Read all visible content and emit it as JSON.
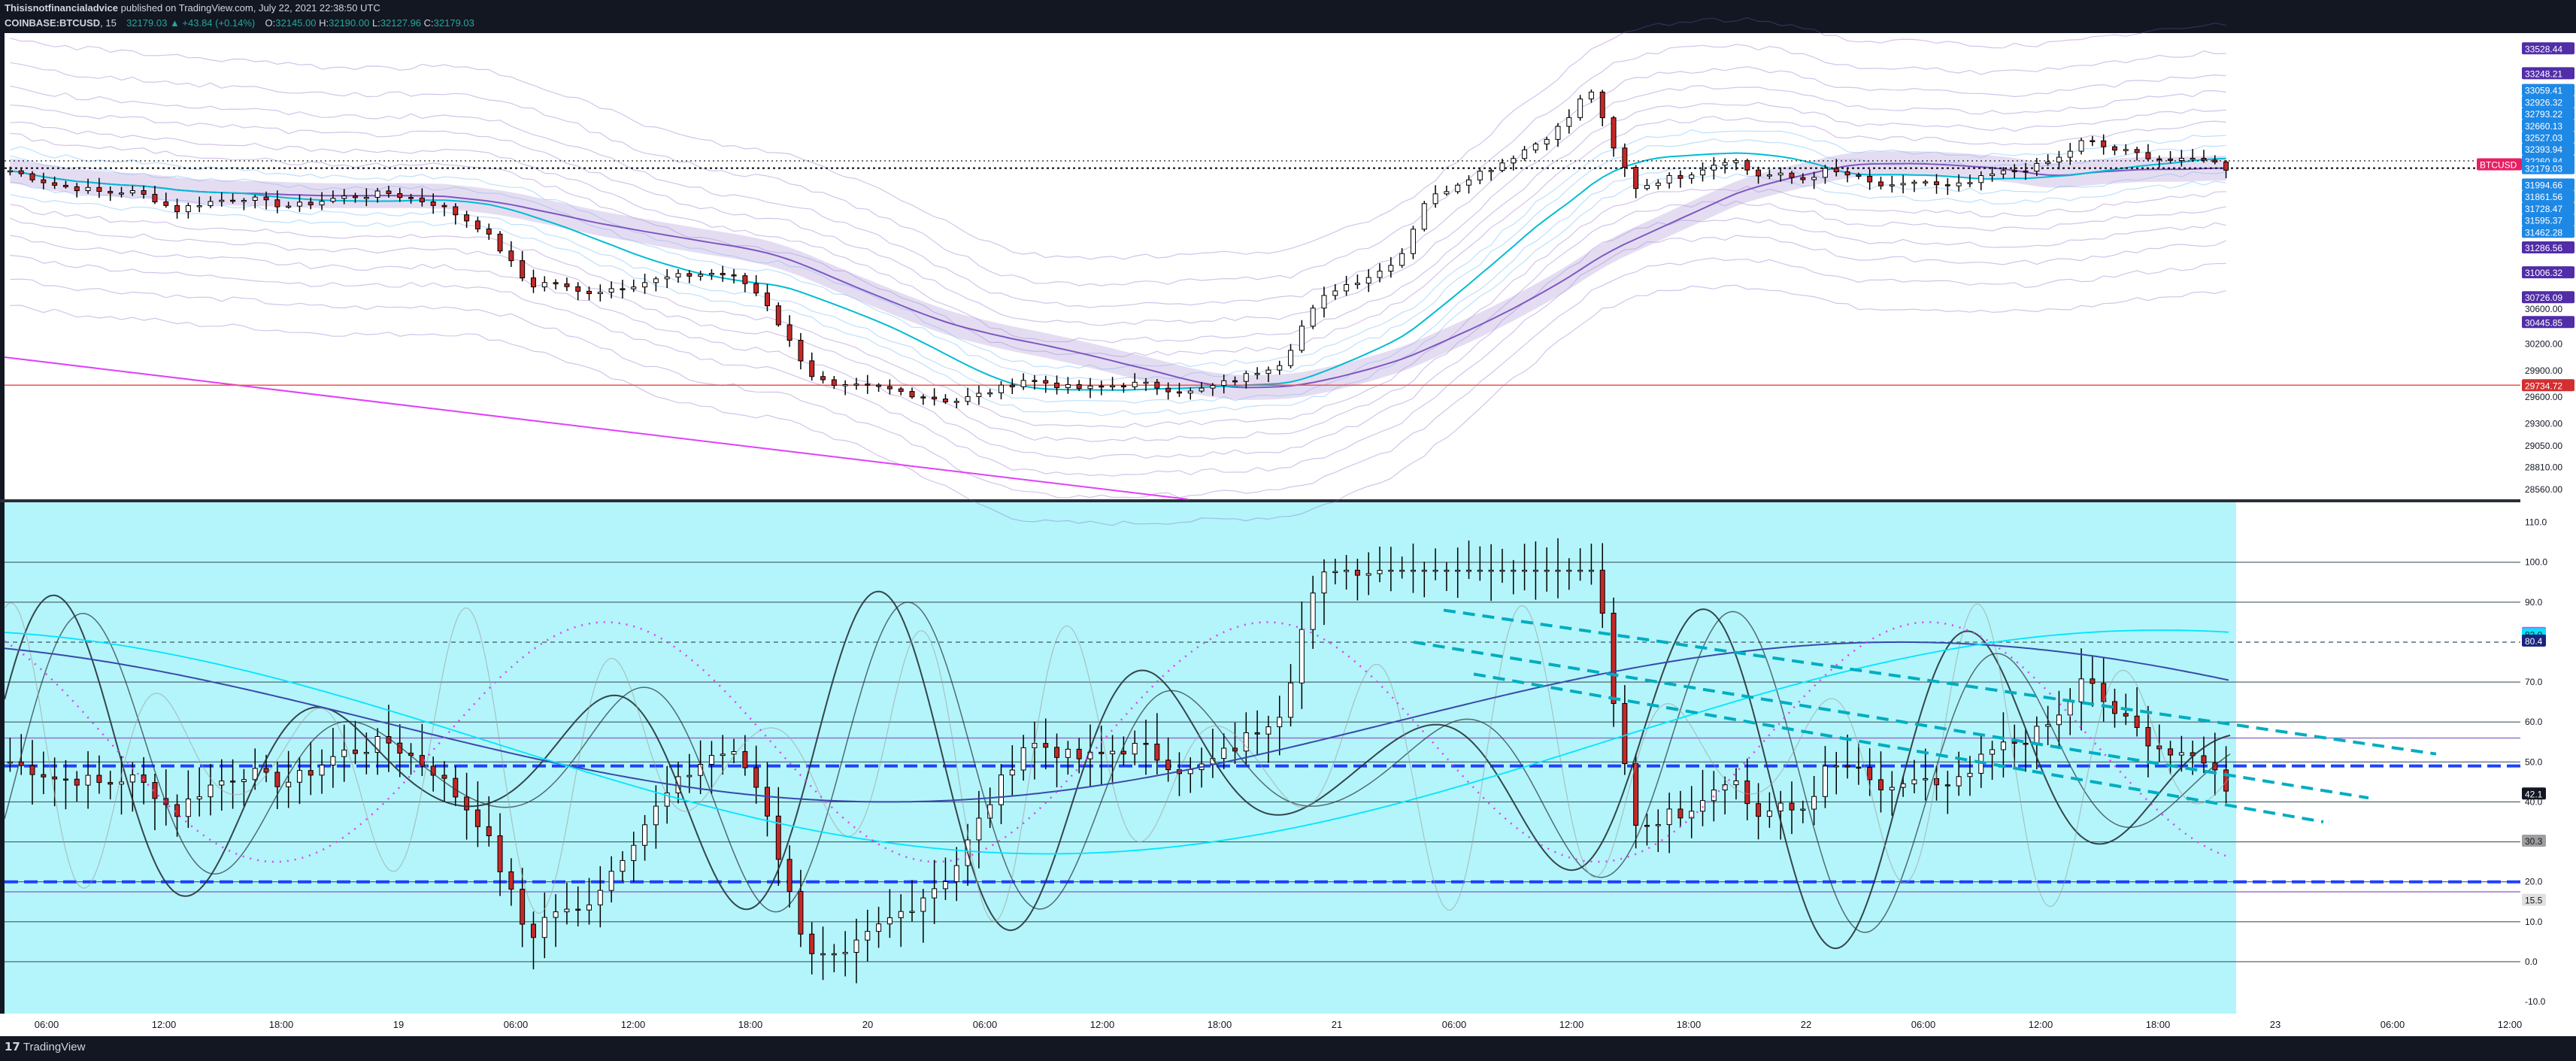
{
  "header": {
    "publisher": "Thisisnotfinancialadvice",
    "published_text": "published on TradingView.com, July 22, 2021 22:38:50 UTC",
    "symbol": "COINBASE:BTCUSD",
    "interval": "15",
    "last": "32179.03",
    "change": "▲ +43.84 (+0.14%)",
    "o_label": "O:",
    "o_value": "32145.00",
    "h_label": "H:",
    "h_value": "32190.00",
    "l_label": "L:",
    "l_value": "32127.96",
    "c_label": "C:",
    "c_value": "32179.03"
  },
  "footer": {
    "brand": "TradingView",
    "brand_mark": "17"
  },
  "colors": {
    "background": "#131722",
    "pane_top_bg": "#ffffff",
    "pane_bottom_bg": "#b3f5fa",
    "up_candle": "#26a69a",
    "down_candle": "#c62828",
    "band_purple": "#7e57c2",
    "band_blue": "#42a5f5",
    "band_cyan": "#00bcd4",
    "magenta_line": "#e040fb",
    "red_level": "#ef5350",
    "osc_dark": "#263238",
    "osc_cyan": "#00e5ff",
    "osc_blue": "#3949ab"
  },
  "chart_data": [
    {
      "type": "candlestick",
      "symbol": "COINBASE:BTCUSD",
      "interval": "15",
      "x_ticks": [
        "06:00",
        "12:00",
        "18:00",
        "19",
        "06:00",
        "12:00",
        "18:00",
        "20",
        "06:00",
        "12:00",
        "18:00",
        "21",
        "06:00",
        "12:00",
        "18:00",
        "22",
        "06:00",
        "12:00",
        "18:00",
        "23",
        "06:00",
        "12:00"
      ],
      "y_ticks": [
        "30200.00",
        "29900.00",
        "29600.00",
        "29300.00",
        "29050.00",
        "28810.00",
        "28560.00"
      ],
      "price_tags": [
        {
          "value": "33528.44",
          "kind": "band"
        },
        {
          "value": "33248.21",
          "kind": "band"
        },
        {
          "value": "33059.41",
          "kind": "band-blue"
        },
        {
          "value": "32926.32",
          "kind": "band-blue"
        },
        {
          "value": "32793.22",
          "kind": "band-blue"
        },
        {
          "value": "32660.13",
          "kind": "band-blue"
        },
        {
          "value": "32527.03",
          "kind": "band-blue"
        },
        {
          "value": "32393.94",
          "kind": "band-blue"
        },
        {
          "value": "32260.84",
          "kind": "band-blue"
        },
        {
          "value": "BTCUSD",
          "kind": "symbol"
        },
        {
          "value": "32179.03",
          "kind": "last"
        },
        {
          "value": "31994.66",
          "kind": "band-blue"
        },
        {
          "value": "31861.56",
          "kind": "band-blue"
        },
        {
          "value": "31728.47",
          "kind": "band-blue"
        },
        {
          "value": "31595.37",
          "kind": "band-blue"
        },
        {
          "value": "31462.28",
          "kind": "band-blue"
        },
        {
          "value": "31286.56",
          "kind": "band"
        },
        {
          "value": "31006.32",
          "kind": "band"
        },
        {
          "value": "30726.09",
          "kind": "band"
        },
        {
          "value": "30600.00",
          "kind": "axis"
        },
        {
          "value": "30445.85",
          "kind": "band"
        },
        {
          "value": "29734.72",
          "kind": "red-level"
        }
      ],
      "y_range": [
        28450,
        33700
      ],
      "close_approx": [
        32150,
        32070,
        31980,
        31950,
        31900,
        31920,
        31850,
        31700,
        31780,
        31820,
        31850,
        31780,
        31750,
        31800,
        31850,
        31870,
        31900,
        31840,
        31780,
        31650,
        31500,
        31200,
        30850,
        30900,
        30780,
        30800,
        30850,
        30900,
        30950,
        30980,
        31000,
        30920,
        30700,
        30250,
        29850,
        29700,
        29720,
        29700,
        29650,
        29600,
        29550,
        29620,
        29700,
        29800,
        29760,
        29700,
        29700,
        29740,
        29750,
        29700,
        29650,
        29720,
        29800,
        29900,
        30000,
        30500,
        30800,
        30900,
        31000,
        31200,
        31800,
        31950,
        32100,
        32200,
        32350,
        32500,
        32700,
        33100,
        32400,
        31950,
        32050,
        32100,
        32200,
        32300,
        32100,
        32100,
        32050,
        32150,
        32100,
        32000,
        31950,
        32050,
        31950,
        32000,
        32100,
        32150,
        32200,
        32300,
        32500,
        32400,
        32350,
        32300,
        32250,
        32300,
        32179
      ],
      "horizontal_levels": [
        "29734.72",
        "32179.03"
      ],
      "grid": false
    },
    {
      "type": "oscillator",
      "y_ticks": [
        "110.0",
        "100.0",
        "90.0",
        "80.0",
        "70.0",
        "60.0",
        "50.0",
        "42.1",
        "40.0",
        "30.0",
        "20.0",
        "10.0",
        "0.0",
        "-10.0"
      ],
      "value_tags": [
        {
          "value": "82.3",
          "kind": "magenta"
        },
        {
          "value": "82.0",
          "kind": "cyan"
        },
        {
          "value": "80.4",
          "kind": "blue"
        },
        {
          "value": "42.1",
          "kind": "main"
        },
        {
          "value": "30.3",
          "kind": "gray"
        },
        {
          "value": "15.5",
          "kind": "gray-light"
        }
      ],
      "y_range": [
        -13,
        115
      ],
      "horizontal_levels": [
        100,
        90,
        70,
        60,
        50,
        40,
        30,
        20,
        10,
        0
      ],
      "dashed_levels": [
        80,
        49,
        20
      ],
      "grid": false
    }
  ]
}
